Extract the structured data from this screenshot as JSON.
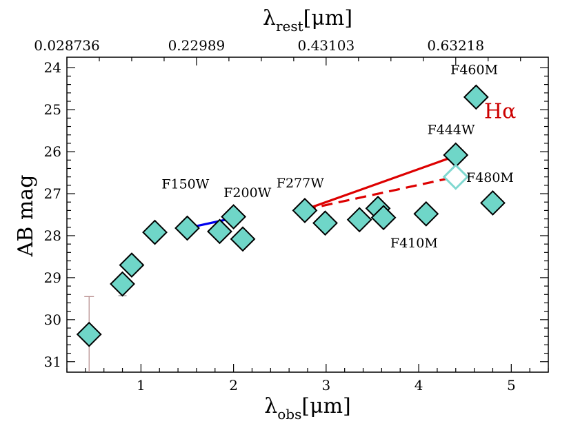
{
  "chart_data": {
    "type": "scatter",
    "title": "",
    "xlabel": "λobs[μm]",
    "xlabel_main": "λ",
    "xlabel_sub": "obs",
    "xlabel_unit": "[μm]",
    "ylabel": "AB mag",
    "top_xlabel_main": "λ",
    "top_xlabel_sub": "rest",
    "top_xlabel_unit": "[μm]",
    "xlim": [
      0.2,
      5.4
    ],
    "ylim": [
      31.25,
      23.75
    ],
    "y_inverted": true,
    "x_ticks": [
      1,
      2,
      3,
      4,
      5
    ],
    "x_tick_labels": [
      "1",
      "2",
      "3",
      "4",
      "5"
    ],
    "y_ticks": [
      24,
      25,
      26,
      27,
      28,
      29,
      30,
      31
    ],
    "y_tick_labels": [
      "24",
      "25",
      "26",
      "27",
      "28",
      "29",
      "30",
      "31"
    ],
    "top_ticks_obs": [
      0.2,
      1.6,
      3.0,
      4.4
    ],
    "top_tick_labels": [
      "0.028736",
      "0.22989",
      "0.43103",
      "0.63218"
    ],
    "grid": false,
    "points": [
      {
        "x": 0.44,
        "y": 30.35,
        "err_low": 29.45,
        "err_high": 31.3
      },
      {
        "x": 0.8,
        "y": 29.15
      },
      {
        "x": 0.9,
        "y": 28.7
      },
      {
        "x": 1.15,
        "y": 27.92
      },
      {
        "x": 1.5,
        "y": 27.82
      },
      {
        "x": 1.85,
        "y": 27.9
      },
      {
        "x": 2.0,
        "y": 27.55
      },
      {
        "x": 2.1,
        "y": 28.08
      },
      {
        "x": 2.77,
        "y": 27.4
      },
      {
        "x": 2.99,
        "y": 27.7
      },
      {
        "x": 3.36,
        "y": 27.62
      },
      {
        "x": 3.56,
        "y": 27.35
      },
      {
        "x": 3.62,
        "y": 27.57
      },
      {
        "x": 4.08,
        "y": 27.48
      },
      {
        "x": 4.4,
        "y": 26.08
      },
      {
        "x": 4.62,
        "y": 24.7
      },
      {
        "x": 4.8,
        "y": 27.22
      }
    ],
    "open_points": [
      {
        "x": 4.4,
        "y": 26.6
      }
    ],
    "lines": [
      {
        "name": "blue-fit",
        "color": "#0000ee",
        "dash": false,
        "x": [
          1.5,
          2.0
        ],
        "y": [
          27.82,
          27.58
        ]
      },
      {
        "name": "red-solid-fit",
        "color": "#dd0000",
        "dash": false,
        "x": [
          2.77,
          4.4
        ],
        "y": [
          27.38,
          26.1
        ]
      },
      {
        "name": "red-dashed-fit",
        "color": "#dd0000",
        "dash": true,
        "x": [
          2.77,
          4.4
        ],
        "y": [
          27.38,
          26.6
        ]
      }
    ],
    "annotations": [
      {
        "text": "F150W",
        "x": 1.48,
        "y": 26.88
      },
      {
        "text": "F200W",
        "x": 2.15,
        "y": 27.08
      },
      {
        "text": "F277W",
        "x": 2.72,
        "y": 26.85
      },
      {
        "text": "F410M",
        "x": 3.95,
        "y": 28.28
      },
      {
        "text": "F444W",
        "x": 4.35,
        "y": 25.58
      },
      {
        "text": "F460M",
        "x": 4.6,
        "y": 24.15
      },
      {
        "text": "F480M",
        "x": 4.77,
        "y": 26.72
      }
    ],
    "halpha_label": {
      "text": "Hα",
      "x": 4.88,
      "y": 25.2,
      "color": "#cc0000"
    },
    "marker_fill": "#6fd6c8",
    "marker_open_color": "#7fd8d0"
  }
}
